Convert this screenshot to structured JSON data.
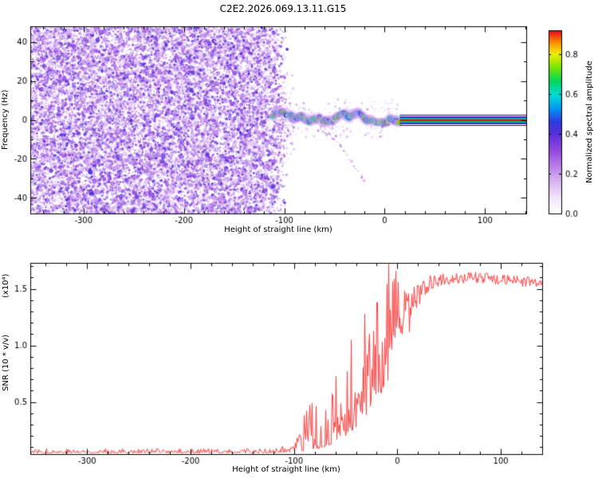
{
  "title": "C2E2.2026.069.13.11.G15",
  "colors": {
    "background": "#ffffff",
    "axis": "#000000",
    "snr_line": "#fa3c3c"
  },
  "chart_data": [
    {
      "type": "heatmap",
      "name": "radio-occultation-spectrogram",
      "xlabel": "Height of straight line (km)",
      "ylabel": "Frequency (Hz)",
      "xlim": [
        -353,
        141
      ],
      "ylim": [
        -48,
        48
      ],
      "xticks": [
        -300,
        -200,
        -100,
        0,
        100
      ],
      "x_minor_step": 20,
      "yticks": [
        -40,
        -20,
        0,
        20,
        40
      ],
      "y_minor_step": 10,
      "colormap_stops": [
        [
          0.0,
          "#ffffff"
        ],
        [
          0.08,
          "#f4e9fb"
        ],
        [
          0.2,
          "#d0a5ef"
        ],
        [
          0.33,
          "#9b4fe0"
        ],
        [
          0.43,
          "#5b2fd6"
        ],
        [
          0.5,
          "#2a3ae0"
        ],
        [
          0.58,
          "#00a0f0"
        ],
        [
          0.65,
          "#00dcd0"
        ],
        [
          0.72,
          "#00d65e"
        ],
        [
          0.8,
          "#7ce600"
        ],
        [
          0.87,
          "#eeee00"
        ],
        [
          0.93,
          "#ff9400"
        ],
        [
          1.0,
          "#e6001e"
        ]
      ],
      "colorbar": {
        "label": "Normalized spectral amplitude",
        "ticks": [
          0.0,
          0.2,
          0.4,
          0.6,
          0.8
        ],
        "top_value": 0.92
      },
      "features": {
        "noise_field": {
          "x_from": -353,
          "x_full_until": -120,
          "x_end": -96,
          "y_span": [
            -48,
            48
          ],
          "description": "broadband purple speckle noise filling all frequencies below -110 km"
        },
        "signal_track": {
          "x_from": -112,
          "x_to": 15,
          "y_center": 0,
          "y_wiggle": 4,
          "description": "wiggly high-amplitude occultation signal near 0 Hz"
        },
        "carrier_line": {
          "x_from": 15,
          "x_to": 141,
          "y": 0,
          "description": "solid carrier line at 0 Hz, red core fading through green/cyan/blue"
        },
        "descending_arc": {
          "from": [
            -68,
            -5
          ],
          "to": [
            -19,
            -33
          ],
          "description": "faint dotted arc descending below the main signal"
        }
      }
    },
    {
      "type": "line",
      "name": "snr-profile",
      "xlabel": "Height of straight line (km)",
      "ylabel": "SNR (10 * v/v)",
      "ylabel_scale": "(x10⁴)",
      "xlim": [
        -355,
        140
      ],
      "ylim": [
        0.04,
        1.73
      ],
      "xticks": [
        -300,
        -200,
        -100,
        0,
        100
      ],
      "x_minor_step": 20,
      "yticks": [
        0.5,
        1.0,
        1.5
      ],
      "y_minor_step": 0.1,
      "line_color": "#fa3c3c",
      "envelope": [
        [
          -355,
          0.05,
          0.09
        ],
        [
          -120,
          0.05,
          0.09
        ],
        [
          -100,
          0.06,
          0.14
        ],
        [
          -93,
          0.06,
          0.3
        ],
        [
          -86,
          0.07,
          0.55
        ],
        [
          -80,
          0.08,
          0.45
        ],
        [
          -72,
          0.1,
          0.6
        ],
        [
          -65,
          0.12,
          0.55
        ],
        [
          -58,
          0.15,
          0.8
        ],
        [
          -50,
          0.2,
          0.75
        ],
        [
          -44,
          0.25,
          1.0
        ],
        [
          -38,
          0.3,
          0.9
        ],
        [
          -32,
          0.35,
          1.2
        ],
        [
          -26,
          0.45,
          1.1
        ],
        [
          -20,
          0.55,
          1.35
        ],
        [
          -14,
          0.6,
          1.5
        ],
        [
          -9,
          0.7,
          1.73
        ],
        [
          -4,
          0.8,
          1.62
        ],
        [
          2,
          0.95,
          1.55
        ],
        [
          8,
          1.05,
          1.5
        ],
        [
          15,
          1.2,
          1.55
        ],
        [
          22,
          1.35,
          1.58
        ],
        [
          30,
          1.48,
          1.62
        ],
        [
          45,
          1.54,
          1.64
        ],
        [
          80,
          1.55,
          1.65
        ],
        [
          110,
          1.53,
          1.62
        ],
        [
          140,
          1.5,
          1.6
        ]
      ],
      "spikes": [
        [
          -9,
          1.72
        ],
        [
          -2,
          1.66
        ],
        [
          -32,
          1.28
        ],
        [
          -45,
          1.05
        ],
        [
          -20,
          1.38
        ]
      ]
    }
  ]
}
